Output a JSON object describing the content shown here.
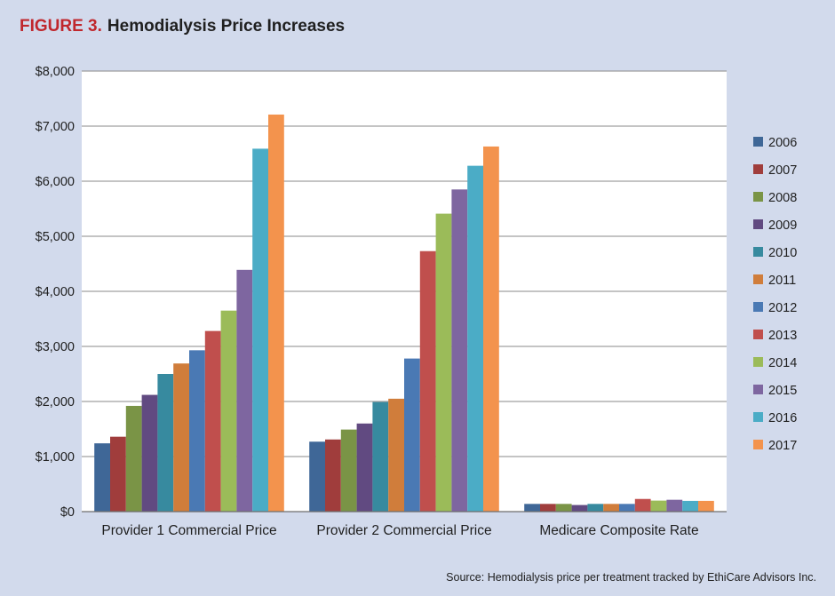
{
  "figure": {
    "label": "FIGURE 3.",
    "title": "Hemodialysis Price Increases"
  },
  "source": "Source: Hemodialysis price per treatment tracked by EthiCare Advisors Inc.",
  "chart_data": {
    "type": "bar",
    "title": "Hemodialysis Price Increases",
    "xlabel": "",
    "ylabel": "",
    "ylim": [
      0,
      8000
    ],
    "yticks": [
      0,
      1000,
      2000,
      3000,
      4000,
      5000,
      6000,
      7000,
      8000
    ],
    "ytick_labels": [
      "$0",
      "$1,000",
      "$2,000",
      "$3,000",
      "$4,000",
      "$5,000",
      "$6,000",
      "$7,000",
      "$8,000"
    ],
    "grid": true,
    "legend_position": "right",
    "categories": [
      "Provider 1 Commercial Price",
      "Provider 2 Commercial Price",
      "Medicare Composite Rate"
    ],
    "series": [
      {
        "name": "2006",
        "color": "#3f6797",
        "values": [
          1240,
          1270,
          140
        ]
      },
      {
        "name": "2007",
        "color": "#a03d3c",
        "values": [
          1360,
          1310,
          140
        ]
      },
      {
        "name": "2008",
        "color": "#7a9446",
        "values": [
          1920,
          1490,
          140
        ]
      },
      {
        "name": "2009",
        "color": "#614a81",
        "values": [
          2120,
          1600,
          120
        ]
      },
      {
        "name": "2010",
        "color": "#378a9f",
        "values": [
          2500,
          1990,
          140
        ]
      },
      {
        "name": "2011",
        "color": "#d07d3b",
        "values": [
          2690,
          2050,
          140
        ]
      },
      {
        "name": "2012",
        "color": "#4a79b4",
        "values": [
          2930,
          2780,
          140
        ]
      },
      {
        "name": "2013",
        "color": "#c04f4d",
        "values": [
          3280,
          4730,
          230
        ]
      },
      {
        "name": "2014",
        "color": "#9bbb59",
        "values": [
          3650,
          5410,
          200
        ]
      },
      {
        "name": "2015",
        "color": "#7e66a0",
        "values": [
          4390,
          5850,
          215
        ]
      },
      {
        "name": "2016",
        "color": "#4bacc6",
        "values": [
          6590,
          6280,
          195
        ]
      },
      {
        "name": "2017",
        "color": "#f3934d",
        "values": [
          7210,
          6630,
          195
        ]
      }
    ]
  }
}
